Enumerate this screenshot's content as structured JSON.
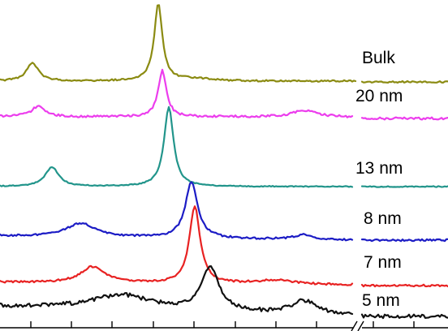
{
  "chart_data": {
    "type": "line",
    "title": "",
    "xlabel": "",
    "ylabel": "",
    "x_axis_break": true,
    "grid": false,
    "legend": "inline labels at right",
    "series": [
      {
        "name": "Bulk",
        "color": "#8b8b12",
        "peaks": [
          {
            "center": 40,
            "height": 22,
            "width": 9
          },
          {
            "center": 195,
            "height": 95,
            "width": 6
          },
          {
            "center": 240,
            "height": 3,
            "width": 25
          }
        ]
      },
      {
        "name": "20 nm",
        "color": "#ec3ded",
        "peaks": [
          {
            "center": 47,
            "height": 13,
            "width": 10
          },
          {
            "center": 200,
            "height": 57,
            "width": 6
          },
          {
            "center": 375,
            "height": 8,
            "width": 16
          }
        ]
      },
      {
        "name": "13 nm",
        "color": "#22958b",
        "peaks": [
          {
            "center": 64,
            "height": 24,
            "width": 10
          },
          {
            "center": 208,
            "height": 98,
            "width": 7
          }
        ]
      },
      {
        "name": "8 nm",
        "color": "#1c1cc5",
        "peaks": [
          {
            "center": 100,
            "height": 17,
            "width": 22
          },
          {
            "center": 236,
            "height": 70,
            "width": 9
          },
          {
            "center": 375,
            "height": 6,
            "width": 14
          }
        ]
      },
      {
        "name": "7 nm",
        "color": "#e82222",
        "peaks": [
          {
            "center": 114,
            "height": 20,
            "width": 18
          },
          {
            "center": 240,
            "height": 95,
            "width": 8
          },
          {
            "center": 340,
            "height": 5,
            "width": 30
          }
        ]
      },
      {
        "name": "5 nm",
        "color": "#111111",
        "peaks": [
          {
            "center": 150,
            "height": 18,
            "width": 45
          },
          {
            "center": 259,
            "height": 55,
            "width": 12
          },
          {
            "center": 375,
            "height": 16,
            "width": 18
          }
        ]
      }
    ]
  }
}
